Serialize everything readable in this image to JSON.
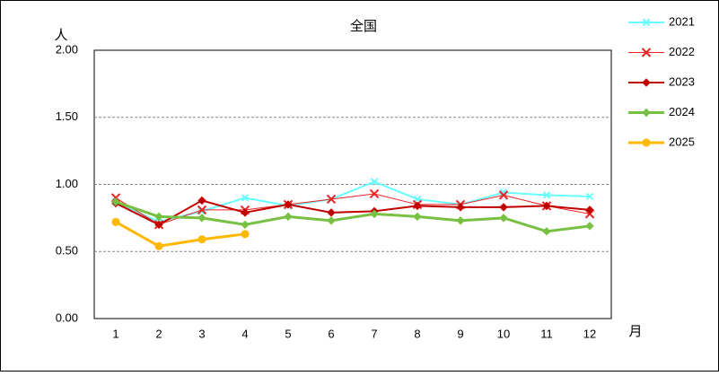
{
  "chart_data": {
    "type": "line",
    "title": "全国",
    "y_label": "人",
    "x_label": "月",
    "categories": [
      "1",
      "2",
      "3",
      "4",
      "5",
      "6",
      "7",
      "8",
      "9",
      "10",
      "11",
      "12"
    ],
    "ylim": [
      0,
      2
    ],
    "yticks": [
      {
        "value": 0,
        "label": "0.00"
      },
      {
        "value": 0.5,
        "label": "0.50"
      },
      {
        "value": 1,
        "label": "1.00"
      },
      {
        "value": 1.5,
        "label": "1.50"
      },
      {
        "value": 2,
        "label": "2.00"
      }
    ],
    "grid": true,
    "legend": "right",
    "series": [
      {
        "name": "2021",
        "color": "#66ffff",
        "marker": "x",
        "width": 2,
        "values": [
          0.87,
          0.72,
          0.8,
          0.9,
          0.84,
          0.89,
          1.02,
          0.89,
          0.85,
          0.94,
          0.92,
          0.91
        ]
      },
      {
        "name": "2022",
        "color": "#ee2222",
        "marker": "x",
        "width": 1,
        "values": [
          0.9,
          0.7,
          0.81,
          0.81,
          0.85,
          0.89,
          0.93,
          0.85,
          0.85,
          0.92,
          0.84,
          0.78
        ]
      },
      {
        "name": "2023",
        "color": "#c00000",
        "marker": "diamond",
        "width": 2,
        "values": [
          0.86,
          0.7,
          0.88,
          0.79,
          0.85,
          0.79,
          0.8,
          0.84,
          0.83,
          0.83,
          0.84,
          0.81
        ]
      },
      {
        "name": "2024",
        "color": "#77c043",
        "marker": "diamond",
        "width": 3,
        "values": [
          0.87,
          0.76,
          0.75,
          0.7,
          0.76,
          0.73,
          0.78,
          0.76,
          0.73,
          0.75,
          0.65,
          0.69
        ]
      },
      {
        "name": "2025",
        "color": "#ffb800",
        "marker": "circle",
        "width": 3,
        "values": [
          0.72,
          0.54,
          0.59,
          0.63,
          null,
          null,
          null,
          null,
          null,
          null,
          null,
          null
        ]
      }
    ]
  }
}
